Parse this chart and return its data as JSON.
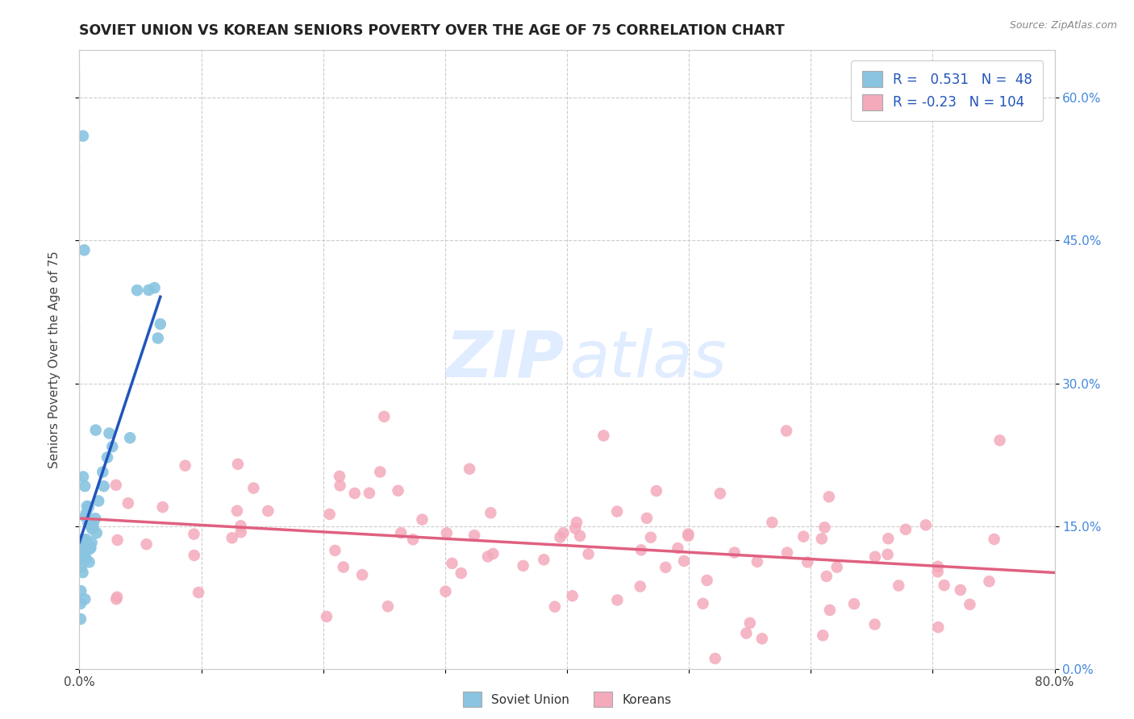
{
  "title": "SOVIET UNION VS KOREAN SENIORS POVERTY OVER THE AGE OF 75 CORRELATION CHART",
  "source": "Source: ZipAtlas.com",
  "ylabel": "Seniors Poverty Over the Age of 75",
  "xlim": [
    0.0,
    0.8
  ],
  "ylim": [
    0.0,
    0.65
  ],
  "soviet_R": 0.531,
  "soviet_N": 48,
  "korean_R": -0.23,
  "korean_N": 104,
  "soviet_color": "#89C4E1",
  "soviet_line_color": "#2255BB",
  "korean_color": "#F4AABB",
  "korean_line_color": "#E06080",
  "grid_color": "#CCCCCC",
  "tick_color_right": "#4488DD",
  "background_color": "#FFFFFF"
}
